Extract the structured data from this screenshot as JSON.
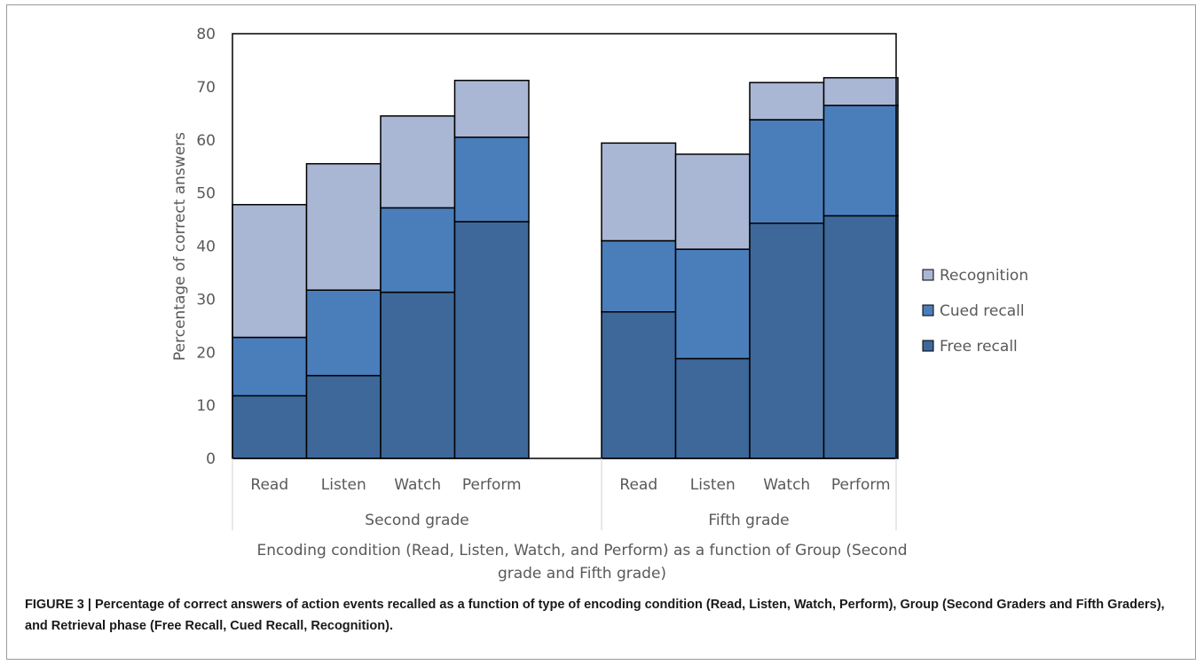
{
  "chart_data": {
    "type": "bar",
    "stacked": true,
    "groups": [
      {
        "label": "Second grade",
        "categories": [
          "Read",
          "Listen",
          "Watch",
          "Perform"
        ]
      },
      {
        "label": "Fifth grade",
        "categories": [
          "Read",
          "Listen",
          "Watch",
          "Perform"
        ]
      }
    ],
    "series": [
      {
        "name": "Free recall",
        "color": "#3d6899",
        "values": [
          11.8,
          15.6,
          31.3,
          44.6,
          27.6,
          18.8,
          44.3,
          45.7
        ]
      },
      {
        "name": "Cued recall",
        "color": "#4a7ebb",
        "values": [
          11.0,
          16.1,
          15.9,
          15.9,
          13.4,
          20.6,
          19.5,
          20.8
        ]
      },
      {
        "name": "Recognition",
        "color": "#a9b7d4",
        "values": [
          25.0,
          23.8,
          17.3,
          10.7,
          18.4,
          17.9,
          7.0,
          5.2
        ]
      }
    ],
    "ylabel": "Percentage of correct answers",
    "xlabel": "Encoding condition (Read, Listen, Watch, and Perform) as a function of Group (Second grade and Fifth grade)",
    "xlabel_lines": [
      "Encoding condition (Read, Listen, Watch, and Perform) as a function of Group (Second",
      "grade and Fifth grade)"
    ],
    "ylim": [
      0,
      80
    ],
    "yticks": [
      0,
      10,
      20,
      30,
      40,
      50,
      60,
      70,
      80
    ],
    "legend_order": [
      "Recognition",
      "Cued recall",
      "Free recall"
    ],
    "legend_position": "right",
    "grid": false
  },
  "caption": "FIGURE 3 | Percentage of correct answers of action events recalled as a function of type of encoding condition (Read, Listen, Watch, Perform), Group (Second Graders and Fifth Graders), and Retrieval phase (Free Recall, Cued Recall, Recognition)."
}
